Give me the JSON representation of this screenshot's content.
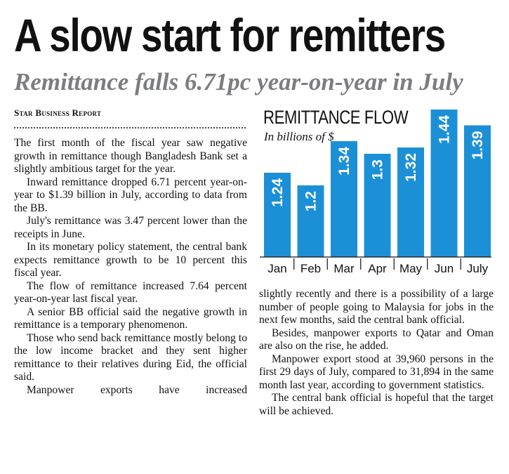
{
  "headline": "A slow start for remitters",
  "subheadline": "Remittance falls 6.71pc year-on-year in July",
  "byline": "Star Business Report",
  "chart_data": {
    "type": "bar",
    "title": "REMITTANCE FLOW",
    "ylabel": "In billions of $",
    "categories": [
      "Jan",
      "Feb",
      "Mar",
      "Apr",
      "May",
      "Jun",
      "July"
    ],
    "values": [
      1.24,
      1.2,
      1.34,
      1.3,
      1.32,
      1.44,
      1.39
    ],
    "data_labels": [
      "1.24",
      "1.2",
      "1.34",
      "1.3",
      "1.32",
      "1.44",
      "1.39"
    ],
    "bar_color": "#1c90d6",
    "grid": false,
    "legend": "none"
  },
  "article": {
    "left_column": [
      "The first month of the fiscal year saw negative growth in remittance though Bangladesh Bank set a slightly ambitious target for the year.",
      "Inward remittance dropped 6.71 percent year-on-year to $1.39 billion in July, according to data from the BB.",
      "July's remittance was 3.47 percent lower than the receipts in June.",
      "In its monetary policy statement, the central bank expects remittance growth to be 10 percent this fiscal year.",
      "The flow of remittance increased 7.64 percent year-on-year last fiscal year.",
      "A senior BB official said the negative growth in remittance is a temporary phenomenon.",
      "Those who send back remittance mostly belong to the low income bracket and they sent higher remittance to their relatives during Eid, the official said.",
      "Manpower exports have increased"
    ],
    "right_column": [
      "slightly recently and there is a possibility of a large number of people going to Malaysia for jobs in the next few months, said the central bank official.",
      "Besides, manpower exports to Qatar and Oman are also on the rise, he added.",
      "Manpower export stood at 39,960 persons in the first 29 days of July, compared to 31,894 in the same month last year, according to government statistics.",
      "The central bank official is hopeful that the target will be achieved."
    ]
  }
}
